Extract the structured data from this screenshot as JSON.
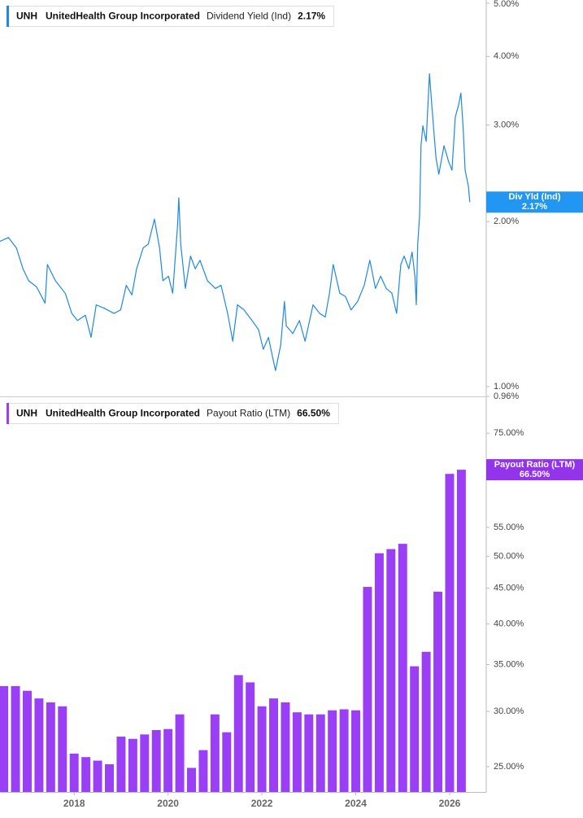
{
  "chart_data": [
    {
      "type": "line",
      "ticker": "UNH",
      "company": "UnitedHealth Group Incorporated",
      "log_scale": true,
      "xlim": [
        2016.42,
        2026.78
      ],
      "x": [
        2016.42,
        2016.6,
        2016.77,
        2016.91,
        2017.03,
        2017.2,
        2017.38,
        2017.43,
        2017.6,
        2017.81,
        2017.95,
        2018.07,
        2018.24,
        2018.36,
        2018.47,
        2018.64,
        2018.85,
        2018.99,
        2019.11,
        2019.23,
        2019.33,
        2019.47,
        2019.58,
        2019.71,
        2019.82,
        2019.89,
        2020.01,
        2020.1,
        2020.2,
        2020.23,
        2020.27,
        2020.37,
        2020.48,
        2020.58,
        2020.68,
        2020.84,
        2021.01,
        2021.13,
        2021.27,
        2021.38,
        2021.48,
        2021.62,
        2021.79,
        2021.93,
        2022.03,
        2022.14,
        2022.23,
        2022.29,
        2022.4,
        2022.48,
        2022.52,
        2022.66,
        2022.8,
        2022.92,
        2023.09,
        2023.23,
        2023.35,
        2023.44,
        2023.52,
        2023.66,
        2023.78,
        2023.9,
        2024.04,
        2024.18,
        2024.3,
        2024.42,
        2024.53,
        2024.65,
        2024.77,
        2024.87,
        2024.96,
        2025.03,
        2025.13,
        2025.2,
        2025.26,
        2025.29,
        2025.32,
        2025.36,
        2025.39,
        2025.43,
        2025.5,
        2025.57,
        2025.62,
        2025.71,
        2025.77,
        2025.88,
        2025.98,
        2026.05,
        2026.12,
        2026.19,
        2026.24,
        2026.29,
        2026.33,
        2026.4,
        2026.43
      ],
      "ylim": [
        0.96,
        5.0
      ],
      "yticks": [
        {
          "value": 5.0,
          "label": "5.00%"
        },
        {
          "value": 4.0,
          "label": "4.00%"
        },
        {
          "value": 3.0,
          "label": "3.00%"
        },
        {
          "value": 2.0,
          "label": "2.00%"
        },
        {
          "value": 1.0,
          "label": "1.00%"
        },
        {
          "value": 0.96,
          "label": "0.96%"
        }
      ],
      "series": [
        {
          "name": "Dividend Yield (Ind)",
          "flag_name": "Div Yld (Ind)",
          "color": "#1e88e5",
          "flag_color": "#2196f3",
          "last_value_label": "2.17%",
          "values": [
            1.84,
            1.87,
            1.79,
            1.64,
            1.56,
            1.52,
            1.42,
            1.67,
            1.56,
            1.48,
            1.36,
            1.32,
            1.35,
            1.23,
            1.41,
            1.39,
            1.36,
            1.38,
            1.53,
            1.47,
            1.64,
            1.79,
            1.82,
            2.02,
            1.79,
            1.56,
            1.59,
            1.48,
            1.95,
            2.21,
            1.82,
            1.51,
            1.73,
            1.64,
            1.7,
            1.56,
            1.51,
            1.53,
            1.36,
            1.21,
            1.41,
            1.38,
            1.32,
            1.27,
            1.17,
            1.23,
            1.13,
            1.07,
            1.19,
            1.43,
            1.29,
            1.25,
            1.32,
            1.21,
            1.41,
            1.36,
            1.34,
            1.48,
            1.67,
            1.48,
            1.46,
            1.38,
            1.43,
            1.53,
            1.7,
            1.51,
            1.59,
            1.51,
            1.48,
            1.36,
            1.67,
            1.73,
            1.64,
            1.76,
            1.59,
            1.41,
            1.82,
            2.05,
            2.75,
            2.99,
            2.8,
            3.72,
            3.26,
            2.61,
            2.44,
            2.75,
            2.57,
            2.48,
            3.1,
            3.26,
            3.43,
            2.94,
            2.48,
            2.32,
            2.17
          ]
        }
      ]
    },
    {
      "type": "bar",
      "ticker": "UNH",
      "company": "UnitedHealth Group Incorporated",
      "log_scale": true,
      "xlim": [
        2016.42,
        2026.78
      ],
      "xticks": [
        2018,
        2020,
        2022,
        2024,
        2026
      ],
      "x": [
        2016.5,
        2016.75,
        2017.0,
        2017.25,
        2017.5,
        2017.75,
        2018.0,
        2018.25,
        2018.5,
        2018.75,
        2019.0,
        2019.25,
        2019.5,
        2019.75,
        2020.0,
        2020.25,
        2020.5,
        2020.75,
        2021.0,
        2021.25,
        2021.5,
        2021.75,
        2022.0,
        2022.25,
        2022.5,
        2022.75,
        2023.0,
        2023.25,
        2023.5,
        2023.75,
        2024.0,
        2024.25,
        2024.5,
        2024.75,
        2025.0,
        2025.25,
        2025.5,
        2025.75,
        2026.0,
        2026.25
      ],
      "ylim": [
        23,
        84
      ],
      "yticks": [
        {
          "value": 75,
          "label": "75.00%"
        },
        {
          "value": 55,
          "label": "55.00%"
        },
        {
          "value": 50,
          "label": "50.00%"
        },
        {
          "value": 45,
          "label": "45.00%"
        },
        {
          "value": 40,
          "label": "40.00%"
        },
        {
          "value": 35,
          "label": "35.00%"
        },
        {
          "value": 30,
          "label": "30.00%"
        },
        {
          "value": 25,
          "label": "25.00%"
        }
      ],
      "series": [
        {
          "name": "Payout Ratio (LTM)",
          "flag_name": "Payout Ratio (LTM)",
          "color": "#9b3ff7",
          "flag_color": "#9333ea",
          "last_value_label": "66.50%",
          "values": [
            32.6,
            32.6,
            32.1,
            31.3,
            30.9,
            30.5,
            26.1,
            25.8,
            25.5,
            25.2,
            27.6,
            27.4,
            27.8,
            28.2,
            28.3,
            29.7,
            24.9,
            26.4,
            29.7,
            28.0,
            33.8,
            33.0,
            30.5,
            31.3,
            30.9,
            29.9,
            29.7,
            29.7,
            30.1,
            30.2,
            30.1,
            45.2,
            50.5,
            51.2,
            52.1,
            34.8,
            36.5,
            44.5,
            65.6,
            66.5
          ]
        }
      ]
    }
  ]
}
